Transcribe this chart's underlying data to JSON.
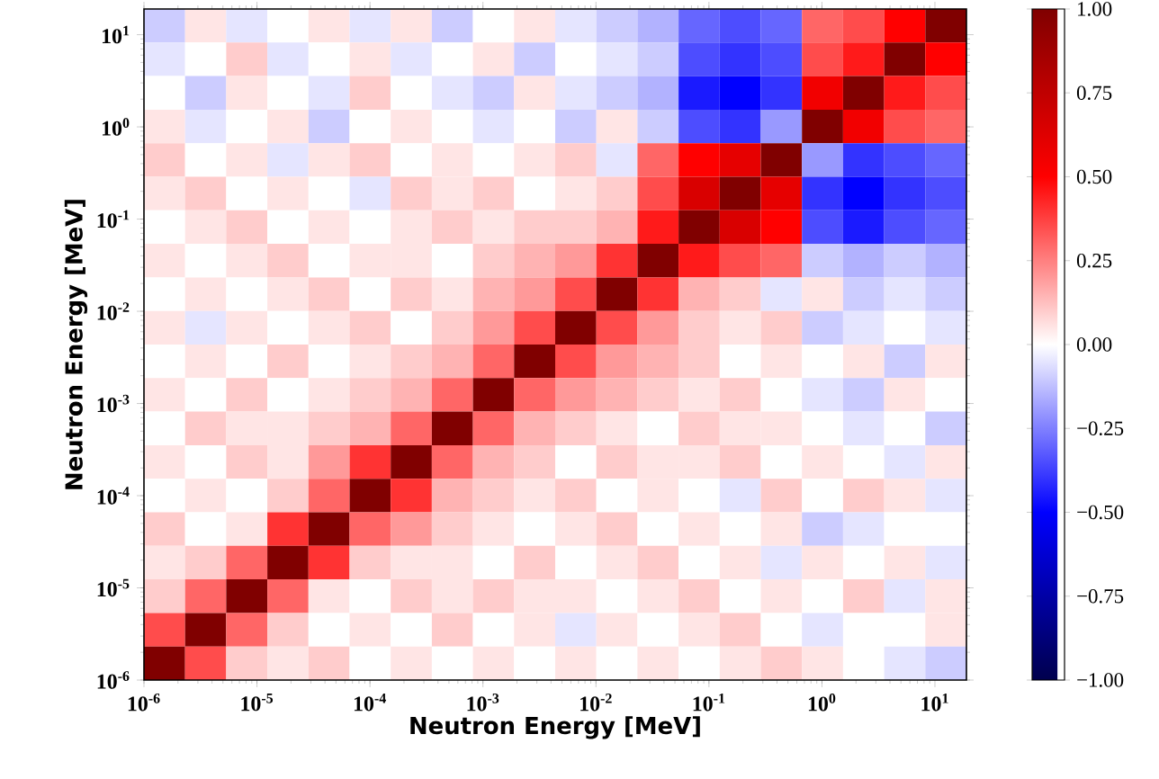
{
  "chart_data": {
    "type": "heatmap",
    "xlabel": "Neutron Energy [MeV]",
    "ylabel": "Neutron Energy [MeV]",
    "log": "xy",
    "xlim": [
      1e-06,
      19
    ],
    "ylim": [
      1e-06,
      19
    ],
    "xticks": [
      {
        "value": 1e-06,
        "label": "10$^{-6}$"
      },
      {
        "value": 1e-05,
        "label": "10$^{-5}$"
      },
      {
        "value": 0.0001,
        "label": "10$^{-4}$"
      },
      {
        "value": 0.001,
        "label": "10$^{-3}$"
      },
      {
        "value": 0.01,
        "label": "10$^{-2}$"
      },
      {
        "value": 0.1,
        "label": "10$^{-1}$"
      },
      {
        "value": 1,
        "label": "10$^{0}$"
      },
      {
        "value": 10,
        "label": "10$^{1}$"
      }
    ],
    "yticks": [
      {
        "value": 1e-06,
        "label": "10$^{-6}$"
      },
      {
        "value": 1e-05,
        "label": "10$^{-5}$"
      },
      {
        "value": 0.0001,
        "label": "10$^{-4}$"
      },
      {
        "value": 0.001,
        "label": "10$^{-3}$"
      },
      {
        "value": 0.01,
        "label": "10$^{-2}$"
      },
      {
        "value": 0.1,
        "label": "10$^{-1}$"
      },
      {
        "value": 1,
        "label": "10$^{0}$"
      },
      {
        "value": 10,
        "label": "10$^{1}$"
      }
    ],
    "clim": [
      -1,
      1
    ],
    "cticks": [
      {
        "value": -1,
        "label": "−1.00"
      },
      {
        "value": -0.75,
        "label": "−0.75"
      },
      {
        "value": -0.5,
        "label": "−0.50"
      },
      {
        "value": -0.25,
        "label": "−0.25"
      },
      {
        "value": 0,
        "label": "0.00"
      },
      {
        "value": 0.25,
        "label": "0.25"
      },
      {
        "value": 0.5,
        "label": "0.50"
      },
      {
        "value": 0.75,
        "label": "0.75"
      },
      {
        "value": 1,
        "label": "1.00"
      }
    ],
    "cells": [
      [
        -0.1,
        0.05,
        -0.05,
        0,
        0.05,
        -0.05,
        0.05,
        -0.1,
        0,
        0.05,
        -0.05,
        -0.1,
        -0.15,
        -0.3,
        -0.35,
        -0.3,
        0.3,
        0.35,
        0.5,
        1
      ],
      [
        -0.05,
        0,
        0.1,
        -0.05,
        0,
        0.05,
        -0.05,
        0,
        0.05,
        -0.1,
        0,
        -0.05,
        -0.1,
        -0.35,
        -0.4,
        -0.35,
        0.35,
        0.45,
        1,
        0.5
      ],
      [
        0,
        -0.1,
        0.05,
        0,
        -0.05,
        0.1,
        0,
        -0.05,
        -0.1,
        0.05,
        -0.05,
        -0.1,
        -0.15,
        -0.45,
        -0.5,
        -0.4,
        0.55,
        1,
        0.45,
        0.35
      ],
      [
        0.05,
        -0.05,
        0,
        0.05,
        -0.1,
        0,
        0.05,
        0,
        -0.05,
        0,
        -0.1,
        0.05,
        -0.1,
        -0.35,
        -0.4,
        -0.2,
        1,
        0.55,
        0.35,
        0.3
      ],
      [
        0.1,
        0,
        0.05,
        -0.05,
        0.05,
        0.1,
        0,
        0.05,
        0,
        0.05,
        0.1,
        -0.05,
        0.3,
        0.5,
        0.6,
        1,
        -0.2,
        -0.4,
        -0.35,
        -0.3
      ],
      [
        0.05,
        0.1,
        0,
        0.05,
        0,
        -0.05,
        0.1,
        0.05,
        0.1,
        0,
        0.05,
        0.1,
        0.35,
        0.65,
        1,
        0.6,
        -0.4,
        -0.5,
        -0.4,
        -0.35
      ],
      [
        0,
        0.05,
        0.1,
        0,
        0.05,
        0,
        0.05,
        0.1,
        0.05,
        0.1,
        0.1,
        0.15,
        0.45,
        1,
        0.65,
        0.5,
        -0.35,
        -0.45,
        -0.35,
        -0.3
      ],
      [
        0.05,
        0,
        0.05,
        0.1,
        0,
        0.05,
        0.05,
        0,
        0.1,
        0.15,
        0.2,
        0.4,
        1,
        0.45,
        0.35,
        0.3,
        -0.1,
        -0.15,
        -0.1,
        -0.15
      ],
      [
        0,
        0.05,
        0,
        0.05,
        0.1,
        0,
        0.1,
        0.05,
        0.15,
        0.2,
        0.35,
        1,
        0.4,
        0.15,
        0.1,
        -0.05,
        0.05,
        -0.1,
        -0.05,
        -0.1
      ],
      [
        0.05,
        -0.05,
        0.05,
        0,
        0.05,
        0.1,
        0,
        0.1,
        0.2,
        0.35,
        1,
        0.35,
        0.2,
        0.1,
        0.05,
        0.1,
        -0.1,
        -0.05,
        0,
        -0.05
      ],
      [
        0,
        0.05,
        0,
        0.1,
        0,
        0.05,
        0.1,
        0.15,
        0.3,
        1,
        0.35,
        0.2,
        0.15,
        0.1,
        0,
        0.05,
        0,
        0.05,
        -0.1,
        0.05
      ],
      [
        0.05,
        0,
        0.1,
        0,
        0.05,
        0.1,
        0.15,
        0.3,
        1,
        0.3,
        0.2,
        0.15,
        0.1,
        0.05,
        0.1,
        0,
        -0.05,
        -0.1,
        0.05,
        0
      ],
      [
        0,
        0.1,
        0.05,
        0.05,
        0.1,
        0.15,
        0.3,
        1,
        0.3,
        0.15,
        0.1,
        0.05,
        0,
        0.1,
        0.05,
        0.05,
        0,
        -0.05,
        0,
        -0.1
      ],
      [
        0.05,
        0,
        0.1,
        0.05,
        0.2,
        0.4,
        1,
        0.3,
        0.15,
        0.1,
        0,
        0.1,
        0.05,
        0.05,
        0.1,
        0,
        0.05,
        0,
        -0.05,
        0.05
      ],
      [
        0,
        0.05,
        0,
        0.1,
        0.3,
        1,
        0.4,
        0.15,
        0.1,
        0.05,
        0.1,
        0,
        0.05,
        0,
        -0.05,
        0.1,
        0,
        0.1,
        0.05,
        -0.05
      ],
      [
        0.1,
        0,
        0.05,
        0.4,
        1,
        0.3,
        0.2,
        0.1,
        0.05,
        0,
        0.05,
        0.1,
        0,
        0.05,
        0,
        0.05,
        -0.1,
        -0.05,
        0,
        0
      ],
      [
        0.05,
        0.1,
        0.3,
        1,
        0.4,
        0.1,
        0.05,
        0.05,
        0,
        0.1,
        0,
        0.05,
        0.1,
        0,
        0.05,
        -0.05,
        0.05,
        0,
        0.05,
        -0.05
      ],
      [
        0.1,
        0.3,
        1,
        0.3,
        0.05,
        0,
        0.1,
        0.05,
        0.1,
        0.05,
        0.05,
        0,
        0.05,
        0.1,
        0,
        0.05,
        0,
        0.1,
        -0.05,
        0.05
      ],
      [
        0.35,
        1,
        0.3,
        0.1,
        0,
        0.05,
        0,
        0.1,
        0,
        0.05,
        -0.05,
        0.05,
        0,
        0.05,
        0.1,
        0,
        -0.05,
        0,
        0,
        0.05
      ],
      [
        1,
        0.35,
        0.1,
        0.05,
        0.1,
        0,
        0.05,
        0,
        0.05,
        0,
        0.05,
        0,
        0.05,
        0,
        0.05,
        0.1,
        0.05,
        0,
        -0.05,
        -0.1
      ]
    ]
  }
}
